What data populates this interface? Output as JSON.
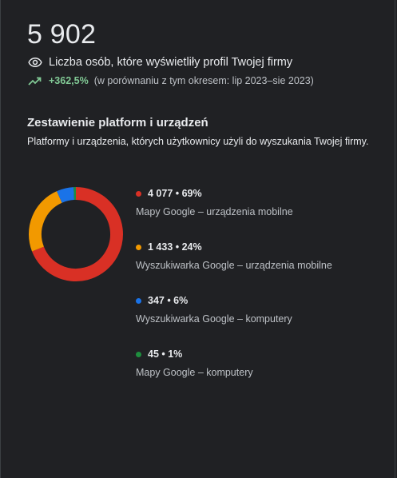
{
  "summary": {
    "total_views": "5 902",
    "views_label": "Liczba osób, które wyświetliły profil Twojej firmy",
    "trend_value": "+362,5%",
    "trend_compare": "(w porównaniu z tym okresem: lip 2023–sie 2023)",
    "icons": [
      "eye-icon",
      "trending-up-icon"
    ],
    "trend_color": "#81c995"
  },
  "breakdown": {
    "title": "Zestawienie platform i urządzeń",
    "subtitle": "Platformy i urządzenia, których użytkownicy użyli do wyszukania Twojej firmy."
  },
  "chart_data": {
    "type": "pie",
    "donut": true,
    "categories": [
      "Mapy Google – urządzenia mobilne",
      "Wyszukiwarka Google – urządzenia mobilne",
      "Wyszukiwarka Google – komputery",
      "Mapy Google – komputery"
    ],
    "values": [
      4077,
      1433,
      347,
      45
    ],
    "percent": [
      69,
      24,
      6,
      1
    ],
    "colors": [
      "#d93025",
      "#f29900",
      "#1a73e8",
      "#1e8e3e"
    ],
    "legend_position": "right",
    "legend": [
      {
        "value_text": "4 077 • 69%",
        "label": "Mapy Google – urządzenia mobilne",
        "color": "#d93025"
      },
      {
        "value_text": "1 433 • 24%",
        "label": "Wyszukiwarka Google – urządzenia mobilne",
        "color": "#f29900"
      },
      {
        "value_text": "347 • 6%",
        "label": "Wyszukiwarka Google – komputery",
        "color": "#1a73e8"
      },
      {
        "value_text": "45 • 1%",
        "label": "Mapy Google – komputery",
        "color": "#1e8e3e"
      }
    ]
  }
}
